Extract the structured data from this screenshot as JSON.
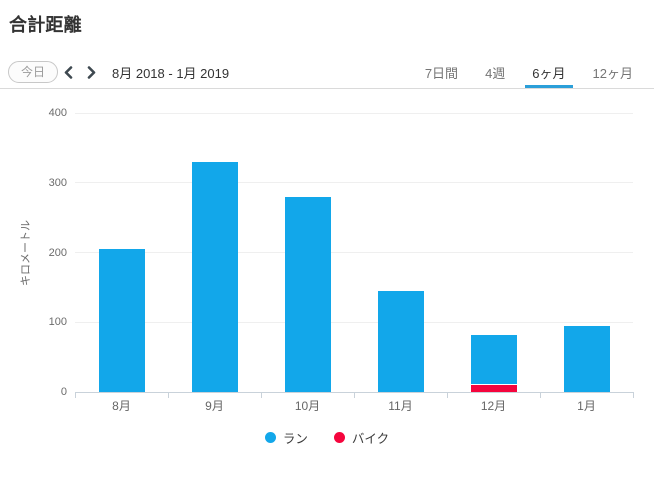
{
  "header": {
    "title": "合計距離"
  },
  "toolbar": {
    "today_label": "今日",
    "date_range": "8月 2018 - 1月 2019",
    "prev_icon": "chevron-left",
    "next_icon": "chevron-right",
    "tabs": [
      {
        "id": "7days",
        "label": "7日間",
        "active": false
      },
      {
        "id": "4weeks",
        "label": "4週",
        "active": false
      },
      {
        "id": "6months",
        "label": "6ヶ月",
        "active": true
      },
      {
        "id": "12months",
        "label": "12ヶ月",
        "active": false
      }
    ]
  },
  "chart_data": {
    "type": "bar",
    "stacked": true,
    "title": "合計距離",
    "categories": [
      "8月",
      "9月",
      "10月",
      "11月",
      "12月",
      "1月"
    ],
    "series": [
      {
        "id": "run",
        "name": "ラン",
        "color": "#12a7ea",
        "values": [
          205,
          330,
          280,
          145,
          70,
          95
        ]
      },
      {
        "id": "bike",
        "name": "バイク",
        "color": "#f5053d",
        "values": [
          0,
          0,
          0,
          0,
          12,
          0
        ]
      }
    ],
    "xlabel": "",
    "ylabel": "キロメートル",
    "yticks": [
      0,
      100,
      200,
      300,
      400
    ],
    "ylim": [
      0,
      400
    ],
    "grid": true,
    "legend_position": "bottom",
    "stack_order": "last_series_at_bottom"
  },
  "colors": {
    "accent_blue": "#2b9fd9",
    "run_blue": "#12a7ea",
    "bike_red": "#f5053d",
    "grid_line": "#efefef",
    "axis_line": "#c9d2da",
    "divider": "#dadada",
    "text_primary": "#333333",
    "text_secondary": "#757575",
    "tick_label": "#6b6b6b"
  }
}
